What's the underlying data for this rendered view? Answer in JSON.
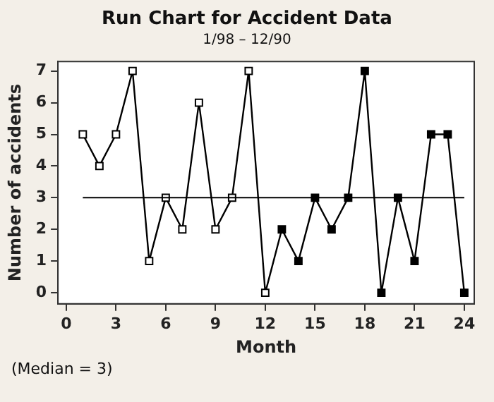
{
  "chart_data": {
    "type": "line",
    "title": "Run Chart for Accident Data",
    "subtitle": "1/98 – 12/90",
    "xlabel": "Month",
    "ylabel": "Number of accidents",
    "x": [
      1,
      2,
      3,
      4,
      5,
      6,
      7,
      8,
      9,
      10,
      11,
      12,
      13,
      14,
      15,
      16,
      17,
      18,
      19,
      20,
      21,
      22,
      23,
      24
    ],
    "series": [
      {
        "color": "#000000",
        "colors": [
          "#ffffff",
          "#ffffff",
          "#ffffff",
          "#ffffff",
          "#ffffff",
          "#ffffff",
          "#ffffff",
          "#ffffff",
          "#ffffff",
          "#ffffff",
          "#ffffff",
          "#ffffff",
          "#000000",
          "#000000",
          "#000000",
          "#000000",
          "#000000",
          "#000000",
          "#000000",
          "#000000",
          "#000000",
          "#000000",
          "#000000",
          "#000000"
        ],
        "values": [
          5,
          4,
          5,
          7,
          1,
          3,
          2,
          6,
          2,
          3,
          7,
          0,
          2,
          1,
          3,
          2,
          3,
          7,
          0,
          3,
          1,
          5,
          5,
          0
        ]
      }
    ],
    "xlim": [
      -0.5,
      24.6
    ],
    "xticks": [
      0,
      3,
      6,
      9,
      12,
      15,
      18,
      21,
      24
    ],
    "ylim": [
      -0.35,
      7.3
    ],
    "yticks": [
      0,
      1,
      2,
      3,
      4,
      5,
      6,
      7
    ],
    "ref_lines": [
      {
        "axis": "y",
        "value": 3,
        "color": "#000000"
      }
    ],
    "annotations": [
      "(Median = 3)"
    ],
    "grid": false,
    "legend": false,
    "marker": "square",
    "line_style": "solid"
  }
}
